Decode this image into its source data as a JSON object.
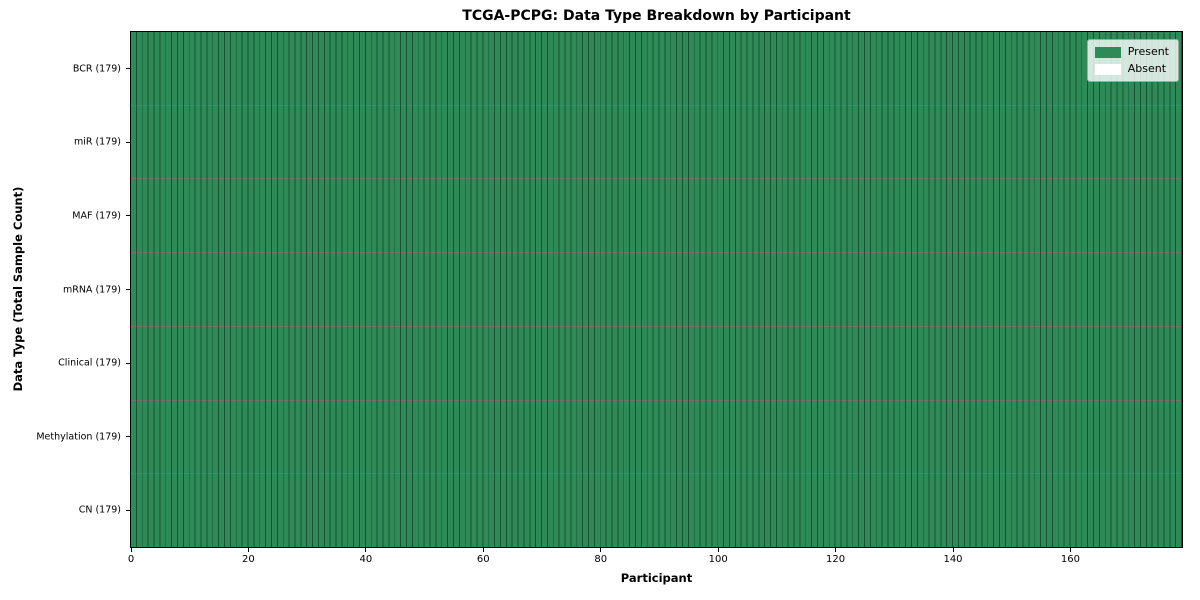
{
  "chart_data": {
    "type": "heatmap",
    "title": "TCGA-PCPG: Data Type Breakdown by Participant",
    "xlabel": "Participant",
    "ylabel": "Data Type (Total Sample Count)",
    "xlim": [
      0,
      179
    ],
    "n_participants": 179,
    "x_ticks": [
      0,
      20,
      40,
      60,
      80,
      100,
      120,
      140,
      160
    ],
    "grid": "cell-edges",
    "legend_position": "upper right",
    "rows": [
      {
        "label": "BCR (179)",
        "data_type": "BCR",
        "total_samples": 179,
        "present_count": 179,
        "absent_count": 0
      },
      {
        "label": "miR (179)",
        "data_type": "miR",
        "total_samples": 179,
        "present_count": 179,
        "absent_count": 0
      },
      {
        "label": "MAF (179)",
        "data_type": "MAF",
        "total_samples": 179,
        "present_count": 179,
        "absent_count": 0
      },
      {
        "label": "mRNA (179)",
        "data_type": "mRNA",
        "total_samples": 179,
        "present_count": 179,
        "absent_count": 0
      },
      {
        "label": "Clinical (179)",
        "data_type": "Clinical",
        "total_samples": 179,
        "present_count": 179,
        "absent_count": 0
      },
      {
        "label": "Methylation (179)",
        "data_type": "Methylation",
        "total_samples": 179,
        "present_count": 179,
        "absent_count": 0
      },
      {
        "label": "CN (179)",
        "data_type": "CN",
        "total_samples": 179,
        "present_count": 179,
        "absent_count": 0
      }
    ],
    "legend": [
      {
        "label": "Present",
        "color": "#2E8B57"
      },
      {
        "label": "Absent",
        "color": "#FFFFFF"
      }
    ],
    "colors": {
      "present": "#2E8B57",
      "absent": "#FFFFFF",
      "cell_edge": "rgba(0,0,0,0.42)",
      "row_edge": "rgba(0,0,0,0.55)",
      "spine": "#000000"
    }
  }
}
